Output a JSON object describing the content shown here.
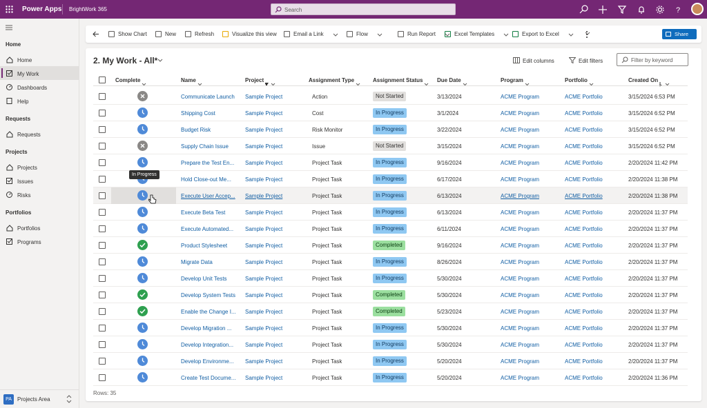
{
  "header": {
    "app": "Power Apps",
    "environment": "BrightWork 365",
    "search": "Search"
  },
  "nav": {
    "groups": [
      {
        "title": "Home",
        "items": [
          "Home",
          "My Work",
          "Dashboards",
          "Help"
        ]
      },
      {
        "title": "Requests",
        "items": [
          "Requests"
        ]
      },
      {
        "title": "Projects",
        "items": [
          "Projects",
          "Issues",
          "Risks"
        ]
      },
      {
        "title": "Portfolios",
        "items": [
          "Portfolios",
          "Programs"
        ]
      }
    ],
    "area_badge": "PA",
    "area": "Projects Area"
  },
  "commands": [
    "Show Chart",
    "New",
    "Refresh",
    "Visualize this view",
    "Email a Link",
    "Flow",
    "Run Report",
    "Excel Templates",
    "Export to Excel"
  ],
  "share": "Share",
  "view": {
    "title": "2. My Work - All*",
    "edit_columns": "Edit columns",
    "edit_filters": "Edit filters",
    "filter_placeholder": "Filter by keyword"
  },
  "table": {
    "columns": [
      "Complete",
      "Name",
      "Project",
      "Assignment Type",
      "Assignment Status",
      "Due Date",
      "Program",
      "Portfolio",
      "Created On"
    ],
    "rows": [
      [
        "Communicate Launch",
        "Sample Project",
        "Action",
        "Not Started",
        "3/13/2024",
        "ACME Program",
        "ACME Portfolio",
        "3/15/2024 6:53 PM"
      ],
      [
        "Shipping Cost",
        "Sample Project",
        "Cost",
        "In Progress",
        "3/1/2024",
        "ACME Program",
        "ACME Portfolio",
        "3/15/2024 6:52 PM"
      ],
      [
        "Budget Risk",
        "Sample Project",
        "Risk Monitor",
        "In Progress",
        "3/22/2024",
        "ACME Program",
        "ACME Portfolio",
        "3/15/2024 6:52 PM"
      ],
      [
        "Supply Chain Issue",
        "Sample Project",
        "Issue",
        "Not Started",
        "3/15/2024",
        "ACME Program",
        "ACME Portfolio",
        "3/15/2024 6:52 PM"
      ],
      [
        "Prepare the Test En...",
        "Sample Project",
        "Project Task",
        "In Progress",
        "9/16/2024",
        "ACME Program",
        "ACME Portfolio",
        "2/20/2024 11:42 PM"
      ],
      [
        "Hold Close-out Me...",
        "Sample Project",
        "Project Task",
        "In Progress",
        "6/17/2024",
        "ACME Program",
        "ACME Portfolio",
        "2/20/2024 11:38 PM"
      ],
      [
        "Execute User Accep...",
        "Sample Project",
        "Project Task",
        "In Progress",
        "6/13/2024",
        "ACME Program",
        "ACME Portfolio",
        "2/20/2024 11:38 PM"
      ],
      [
        "Execute Beta Test",
        "Sample Project",
        "Project Task",
        "In Progress",
        "6/13/2024",
        "ACME Program",
        "ACME Portfolio",
        "2/20/2024 11:37 PM"
      ],
      [
        "Execute Automated...",
        "Sample Project",
        "Project Task",
        "In Progress",
        "6/11/2024",
        "ACME Program",
        "ACME Portfolio",
        "2/20/2024 11:37 PM"
      ],
      [
        "Product Stylesheet",
        "Sample Project",
        "Project Task",
        "Completed",
        "9/16/2024",
        "ACME Program",
        "ACME Portfolio",
        "2/20/2024 11:37 PM"
      ],
      [
        "Migrate Data",
        "Sample Project",
        "Project Task",
        "In Progress",
        "8/26/2024",
        "ACME Program",
        "ACME Portfolio",
        "2/20/2024 11:37 PM"
      ],
      [
        "Develop Unit Tests",
        "Sample Project",
        "Project Task",
        "In Progress",
        "5/30/2024",
        "ACME Program",
        "ACME Portfolio",
        "2/20/2024 11:37 PM"
      ],
      [
        "Develop System Tests",
        "Sample Project",
        "Project Task",
        "Completed",
        "5/30/2024",
        "ACME Program",
        "ACME Portfolio",
        "2/20/2024 11:37 PM"
      ],
      [
        "Enable the Change I...",
        "Sample Project",
        "Project Task",
        "Completed",
        "5/23/2024",
        "ACME Program",
        "ACME Portfolio",
        "2/20/2024 11:37 PM"
      ],
      [
        "Develop Migration ...",
        "Sample Project",
        "Project Task",
        "In Progress",
        "5/30/2024",
        "ACME Program",
        "ACME Portfolio",
        "2/20/2024 11:37 PM"
      ],
      [
        "Develop Integration...",
        "Sample Project",
        "Project Task",
        "In Progress",
        "5/30/2024",
        "ACME Program",
        "ACME Portfolio",
        "2/20/2024 11:37 PM"
      ],
      [
        "Develop Environme...",
        "Sample Project",
        "Project Task",
        "In Progress",
        "5/20/2024",
        "ACME Program",
        "ACME Portfolio",
        "2/20/2024 11:37 PM"
      ],
      [
        "Create Test Docume...",
        "Sample Project",
        "Project Task",
        "In Progress",
        "5/20/2024",
        "ACME Program",
        "ACME Portfolio",
        "2/20/2024 11:36 PM"
      ]
    ],
    "tooltip": "In Progress",
    "footer": "Rows: 35"
  }
}
